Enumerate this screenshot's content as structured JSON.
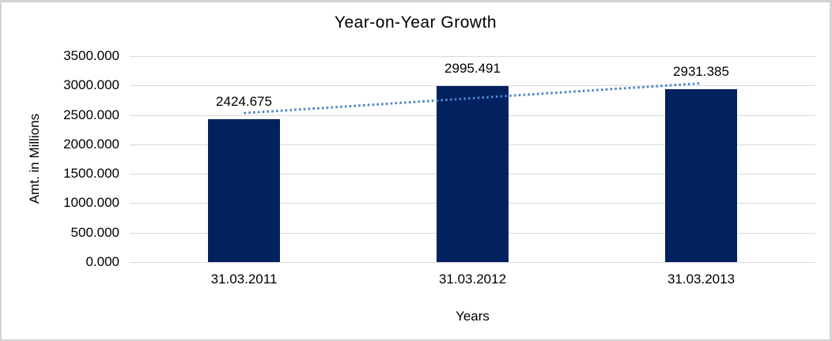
{
  "frame": {
    "background": "#ffffff",
    "border_color": "#d2d2d2"
  },
  "chart_data": {
    "type": "bar",
    "title": "Year-on-Year Growth",
    "xlabel": "Years",
    "ylabel": "Amt. in Millions",
    "categories": [
      "31.03.2011",
      "31.03.2012",
      "31.03.2013"
    ],
    "values": [
      2424.675,
      2995.491,
      2931.385
    ],
    "data_labels": [
      "2424.675",
      "2995.491",
      "2931.385"
    ],
    "ylim": [
      0,
      3500
    ],
    "ytick_step": 500,
    "ytick_labels": [
      "3500.000",
      "3000.000",
      "2500.000",
      "2000.000",
      "1500.000",
      "1000.000",
      "500.000",
      "0.000"
    ],
    "grid": true,
    "legend": "none",
    "bar_color": "#02215f",
    "gridline_color": "#d9d9d9",
    "text_color": "#000000",
    "trendline": {
      "type": "linear",
      "style": "dotted",
      "color": "#4f86c6",
      "start_value": 2530.5,
      "end_value": 3037.2
    }
  }
}
